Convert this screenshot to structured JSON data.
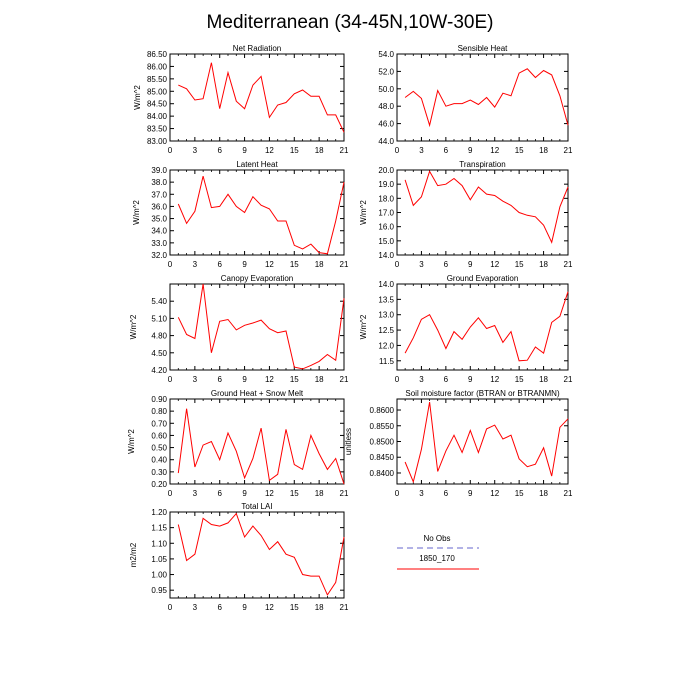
{
  "figure": {
    "title": "Mediterranean (34-45N,10W-30E)",
    "legend": {
      "entries": [
        {
          "label": "No Obs",
          "color": "#9999dd",
          "style": "dashed"
        },
        {
          "label": "1850_170",
          "color": "#ff0000",
          "style": "solid"
        }
      ]
    }
  },
  "chart_data": [
    {
      "type": "line",
      "title": "Net Radiation",
      "ylabel": "W/m^2",
      "x": [
        1,
        2,
        3,
        4,
        5,
        6,
        7,
        8,
        9,
        10,
        11,
        12,
        13,
        14,
        15,
        16,
        17,
        18,
        19,
        20,
        21
      ],
      "xlim": [
        0,
        21
      ],
      "xticks": [
        0,
        3,
        6,
        9,
        12,
        15,
        18,
        21
      ],
      "ylim": [
        83.0,
        86.5
      ],
      "yticks": [
        83.0,
        83.5,
        84.0,
        84.5,
        85.0,
        85.5,
        86.0,
        86.5
      ],
      "ytick_labels": [
        "83.00",
        "83.50",
        "84.00",
        "84.50",
        "85.00",
        "85.50",
        "86.00",
        "86.50"
      ],
      "series": [
        {
          "name": "1850_170",
          "color": "#ff0000",
          "values": [
            85.25,
            85.1,
            84.65,
            84.7,
            86.15,
            84.3,
            85.75,
            84.6,
            84.3,
            85.25,
            85.6,
            83.95,
            84.45,
            84.55,
            84.9,
            85.05,
            84.8,
            84.8,
            84.05,
            84.05,
            83.35
          ]
        }
      ]
    },
    {
      "type": "line",
      "title": "Sensible Heat",
      "ylabel": "",
      "x": [
        1,
        2,
        3,
        4,
        5,
        6,
        7,
        8,
        9,
        10,
        11,
        12,
        13,
        14,
        15,
        16,
        17,
        18,
        19,
        20,
        21
      ],
      "xlim": [
        0,
        21
      ],
      "xticks": [
        0,
        3,
        6,
        9,
        12,
        15,
        18,
        21
      ],
      "ylim": [
        44.0,
        54.0
      ],
      "yticks": [
        44,
        46,
        48,
        50,
        52,
        54
      ],
      "ytick_labels": [
        "44.0",
        "46.0",
        "48.0",
        "50.0",
        "52.0",
        "54.0"
      ],
      "series": [
        {
          "name": "1850_170",
          "color": "#ff0000",
          "values": [
            49.0,
            49.7,
            48.9,
            45.8,
            49.8,
            48.0,
            48.3,
            48.3,
            48.7,
            48.2,
            49.0,
            47.9,
            49.5,
            49.2,
            51.8,
            52.3,
            51.3,
            52.1,
            51.6,
            49.2,
            45.8
          ]
        }
      ]
    },
    {
      "type": "line",
      "title": "Latent Heat",
      "ylabel": "W/m^2",
      "x": [
        1,
        2,
        3,
        4,
        5,
        6,
        7,
        8,
        9,
        10,
        11,
        12,
        13,
        14,
        15,
        16,
        17,
        18,
        19,
        20,
        21
      ],
      "xlim": [
        0,
        21
      ],
      "xticks": [
        0,
        3,
        6,
        9,
        12,
        15,
        18,
        21
      ],
      "ylim": [
        32.0,
        39.0
      ],
      "yticks": [
        32,
        33,
        34,
        35,
        36,
        37,
        38,
        39
      ],
      "ytick_labels": [
        "32.0",
        "33.0",
        "34.0",
        "35.0",
        "36.0",
        "37.0",
        "38.0",
        "39.0"
      ],
      "series": [
        {
          "name": "1850_170",
          "color": "#ff0000",
          "values": [
            36.2,
            34.6,
            35.6,
            38.5,
            35.9,
            36.0,
            37.0,
            36.0,
            35.5,
            36.8,
            36.1,
            35.8,
            34.8,
            34.8,
            32.8,
            32.5,
            32.9,
            32.2,
            32.1,
            34.8,
            38.0
          ]
        }
      ]
    },
    {
      "type": "line",
      "title": "Transpiration",
      "ylabel": "W/m^2",
      "x": [
        1,
        2,
        3,
        4,
        5,
        6,
        7,
        8,
        9,
        10,
        11,
        12,
        13,
        14,
        15,
        16,
        17,
        18,
        19,
        20,
        21
      ],
      "xlim": [
        0,
        21
      ],
      "xticks": [
        0,
        3,
        6,
        9,
        12,
        15,
        18,
        21
      ],
      "ylim": [
        14.0,
        20.0
      ],
      "yticks": [
        14,
        15,
        16,
        17,
        18,
        19,
        20
      ],
      "ytick_labels": [
        "14.0",
        "15.0",
        "16.0",
        "17.0",
        "18.0",
        "19.0",
        "20.0"
      ],
      "series": [
        {
          "name": "1850_170",
          "color": "#ff0000",
          "values": [
            19.3,
            17.5,
            18.1,
            19.9,
            18.9,
            19.0,
            19.4,
            18.9,
            17.9,
            18.8,
            18.3,
            18.2,
            17.8,
            17.5,
            17.0,
            16.8,
            16.7,
            16.1,
            14.9,
            17.4,
            18.8
          ]
        }
      ]
    },
    {
      "type": "line",
      "title": "Canopy Evaporation",
      "ylabel": "W/m^2",
      "x": [
        1,
        2,
        3,
        4,
        5,
        6,
        7,
        8,
        9,
        10,
        11,
        12,
        13,
        14,
        15,
        16,
        17,
        18,
        19,
        20,
        21
      ],
      "xlim": [
        0,
        21
      ],
      "xticks": [
        0,
        3,
        6,
        9,
        12,
        15,
        18,
        21
      ],
      "ylim": [
        4.2,
        5.7
      ],
      "yticks": [
        4.2,
        4.5,
        4.8,
        5.1,
        5.4
      ],
      "ytick_labels": [
        "4.20",
        "4.50",
        "4.80",
        "5.10",
        "5.40"
      ],
      "series": [
        {
          "name": "1850_170",
          "color": "#ff0000",
          "values": [
            5.12,
            4.82,
            4.75,
            5.7,
            4.5,
            5.05,
            5.08,
            4.9,
            4.98,
            5.02,
            5.07,
            4.92,
            4.85,
            4.88,
            4.25,
            4.22,
            4.28,
            4.35,
            4.47,
            4.37,
            5.45
          ]
        }
      ]
    },
    {
      "type": "line",
      "title": "Ground Evaporation",
      "ylabel": "W/m^2",
      "x": [
        1,
        2,
        3,
        4,
        5,
        6,
        7,
        8,
        9,
        10,
        11,
        12,
        13,
        14,
        15,
        16,
        17,
        18,
        19,
        20,
        21
      ],
      "xlim": [
        0,
        21
      ],
      "xticks": [
        0,
        3,
        6,
        9,
        12,
        15,
        18,
        21
      ],
      "ylim": [
        11.2,
        14.0
      ],
      "yticks": [
        11.5,
        12.0,
        12.5,
        13.0,
        13.5,
        14.0
      ],
      "ytick_labels": [
        "11.5",
        "12.0",
        "12.5",
        "13.0",
        "13.5",
        "14.0"
      ],
      "series": [
        {
          "name": "1850_170",
          "color": "#ff0000",
          "values": [
            11.75,
            12.25,
            12.85,
            13.0,
            12.5,
            11.9,
            12.45,
            12.2,
            12.6,
            12.9,
            12.55,
            12.65,
            12.1,
            12.45,
            11.5,
            11.52,
            11.95,
            11.75,
            12.75,
            12.95,
            13.75
          ]
        }
      ]
    },
    {
      "type": "line",
      "title": "Ground Heat + Snow Melt",
      "ylabel": "W/m^2",
      "x": [
        1,
        2,
        3,
        4,
        5,
        6,
        7,
        8,
        9,
        10,
        11,
        12,
        13,
        14,
        15,
        16,
        17,
        18,
        19,
        20,
        21
      ],
      "xlim": [
        0,
        21
      ],
      "xticks": [
        0,
        3,
        6,
        9,
        12,
        15,
        18,
        21
      ],
      "ylim": [
        0.2,
        0.9
      ],
      "yticks": [
        0.2,
        0.3,
        0.4,
        0.5,
        0.6,
        0.7,
        0.8,
        0.9
      ],
      "ytick_labels": [
        "0.20",
        "0.30",
        "0.40",
        "0.50",
        "0.60",
        "0.70",
        "0.80",
        "0.90"
      ],
      "series": [
        {
          "name": "1850_170",
          "color": "#ff0000",
          "values": [
            0.29,
            0.82,
            0.34,
            0.52,
            0.55,
            0.4,
            0.62,
            0.47,
            0.25,
            0.41,
            0.66,
            0.23,
            0.28,
            0.65,
            0.36,
            0.32,
            0.6,
            0.45,
            0.32,
            0.41,
            0.2
          ]
        }
      ]
    },
    {
      "type": "line",
      "title": "Soil moisture factor (BTRAN or BTRANMN)",
      "ylabel": "unitless",
      "x": [
        1,
        2,
        3,
        4,
        5,
        6,
        7,
        8,
        9,
        10,
        11,
        12,
        13,
        14,
        15,
        16,
        17,
        18,
        19,
        20,
        21
      ],
      "xlim": [
        0,
        21
      ],
      "xticks": [
        0,
        3,
        6,
        9,
        12,
        15,
        18,
        21
      ],
      "ylim": [
        0.8365,
        0.8635
      ],
      "yticks": [
        0.84,
        0.845,
        0.85,
        0.855,
        0.86
      ],
      "ytick_labels": [
        "0.8400",
        "0.8450",
        "0.8500",
        "0.8550",
        "0.8600"
      ],
      "series": [
        {
          "name": "1850_170",
          "color": "#ff0000",
          "values": [
            0.8435,
            0.8372,
            0.8475,
            0.8625,
            0.8405,
            0.847,
            0.852,
            0.8465,
            0.8535,
            0.8465,
            0.854,
            0.8552,
            0.8508,
            0.852,
            0.8445,
            0.842,
            0.8428,
            0.848,
            0.839,
            0.8545,
            0.8572
          ]
        }
      ]
    },
    {
      "type": "line",
      "title": "Total LAI",
      "ylabel": "m2/m2",
      "x": [
        1,
        2,
        3,
        4,
        5,
        6,
        7,
        8,
        9,
        10,
        11,
        12,
        13,
        14,
        15,
        16,
        17,
        18,
        19,
        20,
        21
      ],
      "xlim": [
        0,
        21
      ],
      "xticks": [
        0,
        3,
        6,
        9,
        12,
        15,
        18,
        21
      ],
      "ylim": [
        0.925,
        1.2
      ],
      "yticks": [
        0.95,
        1.0,
        1.05,
        1.1,
        1.15,
        1.2
      ],
      "ytick_labels": [
        "0.95",
        "1.00",
        "1.05",
        "1.10",
        "1.15",
        "1.20"
      ],
      "series": [
        {
          "name": "1850_170",
          "color": "#ff0000",
          "values": [
            1.16,
            1.045,
            1.065,
            1.18,
            1.16,
            1.155,
            1.165,
            1.195,
            1.12,
            1.155,
            1.125,
            1.08,
            1.105,
            1.065,
            1.055,
            1.0,
            0.995,
            0.995,
            0.935,
            0.975,
            1.12
          ]
        }
      ]
    }
  ]
}
